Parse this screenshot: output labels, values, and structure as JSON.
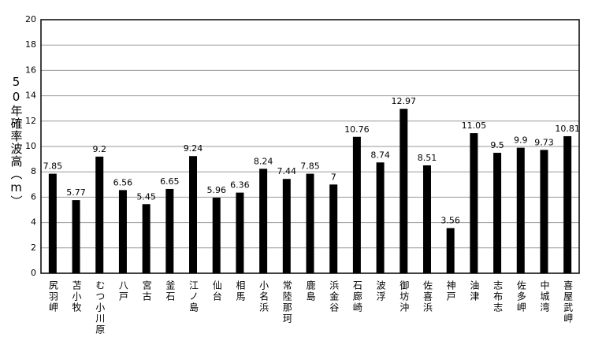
{
  "chart_data": {
    "type": "bar",
    "y_label": "50年確率波高（m）",
    "categories": [
      "尻羽岬",
      "苫小牧",
      "むつ小川原",
      "八戸",
      "宮古",
      "釜石",
      "江ノ島",
      "仙台",
      "相馬",
      "小名浜",
      "常陸那珂",
      "鹿島",
      "浜金谷",
      "石廊崎",
      "波浮",
      "御坊沖",
      "佐喜浜",
      "神戸",
      "油津",
      "志布志",
      "佐多岬",
      "中城湾",
      "喜屋武岬"
    ],
    "values": [
      7.85,
      5.77,
      9.2,
      6.56,
      5.45,
      6.65,
      9.24,
      5.96,
      6.36,
      8.24,
      7.44,
      7.85,
      7,
      10.76,
      8.74,
      12.97,
      8.51,
      3.56,
      11.05,
      9.5,
      9.9,
      9.73,
      10.81
    ],
    "color": "#000000",
    "ylim": [
      0,
      20
    ],
    "yticks": [
      0,
      2,
      4,
      6,
      8,
      10,
      12,
      14,
      16,
      18,
      20
    ],
    "grid": true
  }
}
